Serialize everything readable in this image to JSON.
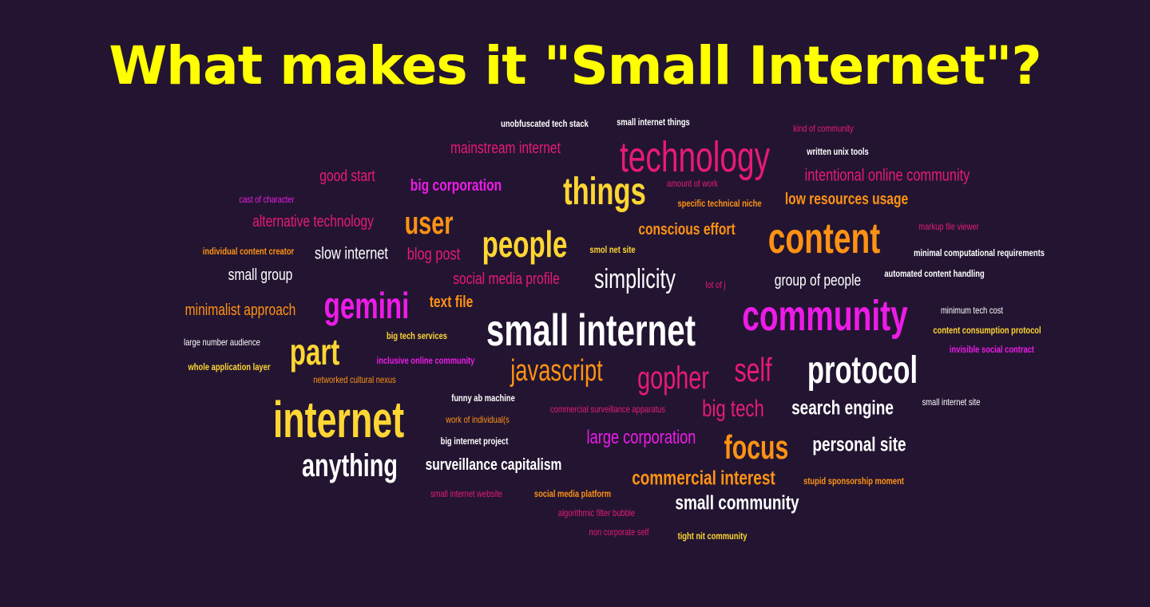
{
  "title": "What makes it \"Small Internet\"?",
  "palette": {
    "white": "#ffffff",
    "yellow": "#ffd633",
    "orange": "#ff9214",
    "pink": "#e8197c",
    "magenta": "#ee1be8",
    "title": "#ffff00",
    "background": "#231531"
  },
  "words": [
    {
      "text": "unobfuscated tech stack",
      "color": "white"
    },
    {
      "text": "small internet things",
      "color": "white"
    },
    {
      "text": "kind of community",
      "color": "pink"
    },
    {
      "text": "mainstream internet",
      "color": "pink"
    },
    {
      "text": "technology",
      "color": "pink"
    },
    {
      "text": "written unix tools",
      "color": "white"
    },
    {
      "text": "good start",
      "color": "pink"
    },
    {
      "text": "intentional online community",
      "color": "pink"
    },
    {
      "text": "big corporation",
      "color": "magenta"
    },
    {
      "text": "things",
      "color": "yellow"
    },
    {
      "text": "amount of work",
      "color": "pink"
    },
    {
      "text": "cast of character",
      "color": "magenta"
    },
    {
      "text": "specific technical niche",
      "color": "orange"
    },
    {
      "text": "low resources usage",
      "color": "orange"
    },
    {
      "text": "alternative technology",
      "color": "pink"
    },
    {
      "text": "user",
      "color": "orange"
    },
    {
      "text": "conscious effort",
      "color": "orange"
    },
    {
      "text": "content",
      "color": "orange"
    },
    {
      "text": "markup file viewer",
      "color": "pink"
    },
    {
      "text": "people",
      "color": "yellow"
    },
    {
      "text": "individual content creator",
      "color": "orange"
    },
    {
      "text": "slow internet",
      "color": "white"
    },
    {
      "text": "blog post",
      "color": "pink"
    },
    {
      "text": "smol net site",
      "color": "yellow"
    },
    {
      "text": "minimal computational requirements",
      "color": "white"
    },
    {
      "text": "small group",
      "color": "white"
    },
    {
      "text": "social media profile",
      "color": "pink"
    },
    {
      "text": "simplicity",
      "color": "white"
    },
    {
      "text": "lot of j",
      "color": "pink"
    },
    {
      "text": "group of people",
      "color": "white"
    },
    {
      "text": "automated content handling",
      "color": "white"
    },
    {
      "text": "minimalist approach",
      "color": "orange"
    },
    {
      "text": "gemini",
      "color": "magenta"
    },
    {
      "text": "text file",
      "color": "orange"
    },
    {
      "text": "community",
      "color": "magenta"
    },
    {
      "text": "minimum tech cost",
      "color": "white"
    },
    {
      "text": "small internet",
      "color": "white"
    },
    {
      "text": "big tech services",
      "color": "yellow"
    },
    {
      "text": "content consumption protocol",
      "color": "yellow"
    },
    {
      "text": "large number audience",
      "color": "white"
    },
    {
      "text": "part",
      "color": "yellow"
    },
    {
      "text": "invisible social contract",
      "color": "magenta"
    },
    {
      "text": "inclusive online community",
      "color": "magenta"
    },
    {
      "text": "javascript",
      "color": "orange"
    },
    {
      "text": "gopher",
      "color": "pink"
    },
    {
      "text": "self",
      "color": "pink"
    },
    {
      "text": "protocol",
      "color": "white"
    },
    {
      "text": "whole application layer",
      "color": "yellow"
    },
    {
      "text": "networked cultural nexus",
      "color": "orange"
    },
    {
      "text": "funny ab machine",
      "color": "white"
    },
    {
      "text": "internet",
      "color": "yellow"
    },
    {
      "text": "commercial surveillance apparatus",
      "color": "pink"
    },
    {
      "text": "big tech",
      "color": "pink"
    },
    {
      "text": "search engine",
      "color": "white"
    },
    {
      "text": "small internet site",
      "color": "white"
    },
    {
      "text": "work of individual(s",
      "color": "orange"
    },
    {
      "text": "big internet project",
      "color": "white"
    },
    {
      "text": "large corporation",
      "color": "magenta"
    },
    {
      "text": "focus",
      "color": "orange"
    },
    {
      "text": "personal site",
      "color": "white"
    },
    {
      "text": "anything",
      "color": "white"
    },
    {
      "text": "surveillance capitalism",
      "color": "white"
    },
    {
      "text": "commercial interest",
      "color": "orange"
    },
    {
      "text": "stupid sponsorship moment",
      "color": "orange"
    },
    {
      "text": "small internet website",
      "color": "pink"
    },
    {
      "text": "social media platform",
      "color": "orange"
    },
    {
      "text": "small community",
      "color": "white"
    },
    {
      "text": "algorithmic filter bubble",
      "color": "pink"
    },
    {
      "text": "non corporate self",
      "color": "pink"
    },
    {
      "text": "tight nit community",
      "color": "yellow"
    }
  ]
}
